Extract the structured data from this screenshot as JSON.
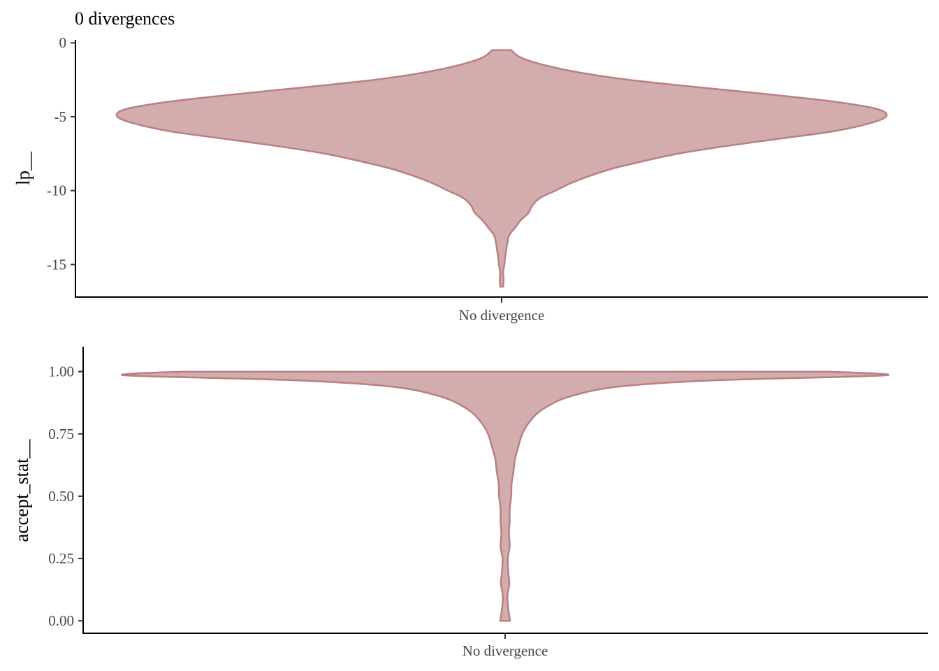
{
  "colors": {
    "fill": "#d3acad",
    "outline": "#b97f83"
  },
  "chart_data": [
    {
      "type": "violin",
      "title": "0 divergences",
      "xlabel": "",
      "ylabel": "lp__",
      "categories": [
        "No divergence"
      ],
      "ylim": [
        -17.2,
        0.2
      ],
      "yticks": [
        0,
        -5,
        -10,
        -15
      ],
      "ytick_labels": [
        "0",
        "-5",
        "-10",
        "-15"
      ],
      "grid": false,
      "density": [
        {
          "y": -0.5,
          "d": 0.025
        },
        {
          "y": -1.0,
          "d": 0.05
        },
        {
          "y": -1.5,
          "d": 0.11
        },
        {
          "y": -2.0,
          "d": 0.2
        },
        {
          "y": -2.5,
          "d": 0.33
        },
        {
          "y": -3.0,
          "d": 0.51
        },
        {
          "y": -3.5,
          "d": 0.7
        },
        {
          "y": -4.0,
          "d": 0.87
        },
        {
          "y": -4.5,
          "d": 0.98
        },
        {
          "y": -5.0,
          "d": 1.0
        },
        {
          "y": -5.5,
          "d": 0.95
        },
        {
          "y": -6.0,
          "d": 0.86
        },
        {
          "y": -6.5,
          "d": 0.72
        },
        {
          "y": -7.0,
          "d": 0.58
        },
        {
          "y": -7.5,
          "d": 0.46
        },
        {
          "y": -8.0,
          "d": 0.37
        },
        {
          "y": -8.5,
          "d": 0.29
        },
        {
          "y": -9.0,
          "d": 0.23
        },
        {
          "y": -9.5,
          "d": 0.18
        },
        {
          "y": -10.0,
          "d": 0.14
        },
        {
          "y": -10.5,
          "d": 0.1
        },
        {
          "y": -11.0,
          "d": 0.08
        },
        {
          "y": -11.5,
          "d": 0.07
        },
        {
          "y": -12.0,
          "d": 0.05
        },
        {
          "y": -12.5,
          "d": 0.035
        },
        {
          "y": -13.0,
          "d": 0.02
        },
        {
          "y": -13.5,
          "d": 0.015
        },
        {
          "y": -14.0,
          "d": 0.012
        },
        {
          "y": -14.5,
          "d": 0.009
        },
        {
          "y": -15.0,
          "d": 0.007
        },
        {
          "y": -15.5,
          "d": 0.004
        },
        {
          "y": -16.0,
          "d": 0.005
        },
        {
          "y": -16.5,
          "d": 0.004
        }
      ]
    },
    {
      "type": "violin",
      "title": "",
      "xlabel": "",
      "ylabel": "accept_stat__",
      "categories": [
        "No divergence"
      ],
      "ylim": [
        -0.05,
        1.1
      ],
      "yticks": [
        1.0,
        0.75,
        0.5,
        0.25,
        0.0
      ],
      "ytick_labels": [
        "1.00",
        "0.75",
        "0.50",
        "0.25",
        "0.00"
      ],
      "grid": false,
      "density": [
        {
          "y": 1.0,
          "d": 0.85
        },
        {
          "y": 0.985,
          "d": 1.0
        },
        {
          "y": 0.965,
          "d": 0.55
        },
        {
          "y": 0.94,
          "d": 0.3
        },
        {
          "y": 0.9,
          "d": 0.17
        },
        {
          "y": 0.85,
          "d": 0.1
        },
        {
          "y": 0.8,
          "d": 0.065
        },
        {
          "y": 0.75,
          "d": 0.045
        },
        {
          "y": 0.7,
          "d": 0.035
        },
        {
          "y": 0.65,
          "d": 0.026
        },
        {
          "y": 0.6,
          "d": 0.022
        },
        {
          "y": 0.55,
          "d": 0.017
        },
        {
          "y": 0.5,
          "d": 0.016
        },
        {
          "y": 0.45,
          "d": 0.012
        },
        {
          "y": 0.4,
          "d": 0.012
        },
        {
          "y": 0.35,
          "d": 0.01
        },
        {
          "y": 0.3,
          "d": 0.012
        },
        {
          "y": 0.25,
          "d": 0.007
        },
        {
          "y": 0.2,
          "d": 0.008
        },
        {
          "y": 0.15,
          "d": 0.011
        },
        {
          "y": 0.1,
          "d": 0.006
        },
        {
          "y": 0.05,
          "d": 0.008
        },
        {
          "y": 0.0,
          "d": 0.013
        }
      ]
    }
  ]
}
